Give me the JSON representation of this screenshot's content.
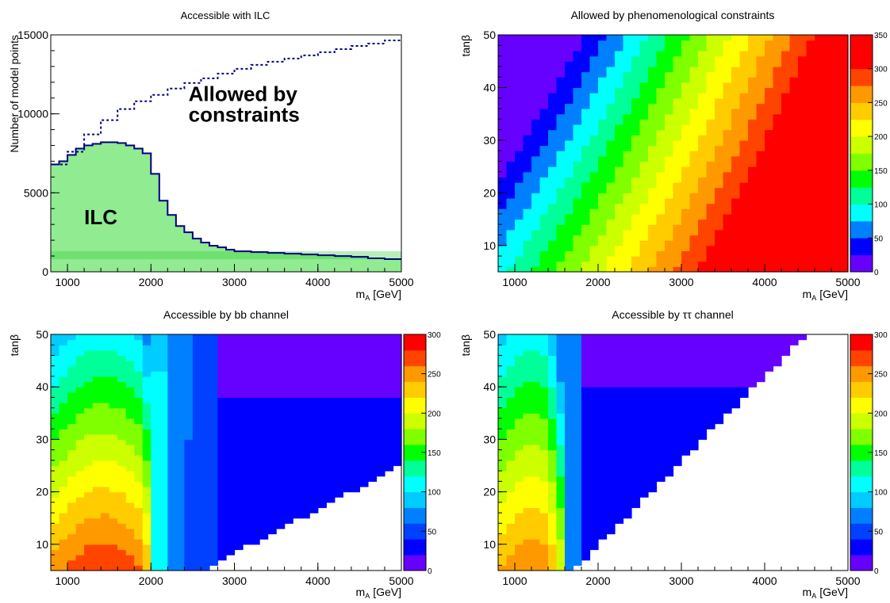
{
  "chart_data": [
    {
      "type": "histogram",
      "title": "Accessible with ILC",
      "xlabel_main": "m",
      "xlabel_sub": "A",
      "xlabel_unit": "[GeV]",
      "ylabel": "Number of model points",
      "xlim": [
        800,
        5000
      ],
      "ylim": [
        0,
        15000
      ],
      "x_ticks": [
        1000,
        2000,
        3000,
        4000,
        5000
      ],
      "y_ticks": [
        0,
        5000,
        10000,
        15000
      ],
      "annotations": [
        {
          "text": "Allowed by",
          "x": 2450,
          "y": 10800
        },
        {
          "text": "constraints",
          "x": 2450,
          "y": 9500
        },
        {
          "text": "ILC",
          "x": 1200,
          "y": 3000
        }
      ],
      "series": [
        {
          "style": "dashed",
          "color": "#000080",
          "x": [
            800,
            1000,
            1200,
            1400,
            1600,
            1800,
            2000,
            2200,
            2400,
            2600,
            2800,
            3000,
            3200,
            3400,
            3600,
            3800,
            4000,
            4200,
            4400,
            4600,
            4800,
            5000
          ],
          "values": [
            6800,
            7600,
            8700,
            9600,
            10300,
            10800,
            11200,
            11600,
            11950,
            12250,
            12550,
            12850,
            13100,
            13300,
            13500,
            13700,
            13900,
            14100,
            14300,
            14450,
            14650,
            14850
          ]
        },
        {
          "style": "filled-step",
          "color": "#000080",
          "fill": "#7ee87e",
          "x": [
            800,
            900,
            1000,
            1100,
            1200,
            1300,
            1400,
            1500,
            1600,
            1700,
            1800,
            1900,
            2000,
            2100,
            2200,
            2300,
            2400,
            2500,
            2600,
            2700,
            2800,
            2900,
            3000,
            3200,
            3400,
            3600,
            3800,
            4000,
            4200,
            4400,
            4600,
            4800,
            5000
          ],
          "values": [
            6800,
            7000,
            7400,
            7800,
            8000,
            8100,
            8200,
            8200,
            8150,
            8000,
            7800,
            7500,
            6200,
            4500,
            3600,
            2900,
            2500,
            2100,
            1850,
            1650,
            1550,
            1400,
            1300,
            1250,
            1200,
            1150,
            1100,
            1050,
            1000,
            950,
            850,
            800,
            750
          ]
        }
      ]
    },
    {
      "type": "heatmap",
      "title": "Allowed by phenomenological constraints",
      "xlabel_main": "m",
      "xlabel_sub": "A",
      "xlabel_unit": "[GeV]",
      "ylabel": "tanβ",
      "xlim": [
        800,
        5000
      ],
      "ylim": [
        5,
        50
      ],
      "x_ticks": [
        1000,
        2000,
        3000,
        4000,
        5000
      ],
      "y_ticks": [
        10,
        20,
        30,
        40,
        50
      ],
      "z_range": [
        0,
        350
      ],
      "z_ticks": [
        0,
        50,
        100,
        150,
        200,
        250,
        300,
        350
      ],
      "colorbar_colors": [
        "#6600ff",
        "#0000ff",
        "#0080ff",
        "#00ffff",
        "#00ff99",
        "#00ff00",
        "#80ff00",
        "#ccff00",
        "#ffff00",
        "#ffcc00",
        "#ff9900",
        "#ff4400",
        "#ff0000",
        "#ff0000"
      ]
    },
    {
      "type": "heatmap",
      "title": "Accessible by bb channel",
      "xlabel_main": "m",
      "xlabel_sub": "A",
      "xlabel_unit": "[GeV]",
      "ylabel": "tanβ",
      "xlim": [
        800,
        5000
      ],
      "ylim": [
        5,
        50
      ],
      "x_ticks": [
        1000,
        2000,
        3000,
        4000,
        5000
      ],
      "y_ticks": [
        10,
        20,
        30,
        40,
        50
      ],
      "z_range": [
        0,
        300
      ],
      "z_ticks": [
        0,
        50,
        100,
        150,
        200,
        250,
        300
      ],
      "colorbar_colors": [
        "#6600ff",
        "#0000ff",
        "#0040ff",
        "#0080ff",
        "#00ccff",
        "#00ffff",
        "#00ff99",
        "#00ff00",
        "#80ff00",
        "#ccff00",
        "#ffff00",
        "#ffcc00",
        "#ff9900",
        "#ff4400",
        "#ff0000"
      ]
    },
    {
      "type": "heatmap",
      "title": "Accessible by ττ channel",
      "xlabel_main": "m",
      "xlabel_sub": "A",
      "xlabel_unit": "[GeV]",
      "ylabel": "tanβ",
      "xlim": [
        800,
        5000
      ],
      "ylim": [
        5,
        50
      ],
      "x_ticks": [
        1000,
        2000,
        3000,
        4000,
        5000
      ],
      "y_ticks": [
        10,
        20,
        30,
        40,
        50
      ],
      "z_range": [
        0,
        300
      ],
      "z_ticks": [
        0,
        50,
        100,
        150,
        200,
        250,
        300
      ],
      "colorbar_colors": [
        "#6600ff",
        "#0000ff",
        "#0040ff",
        "#0080ff",
        "#00ccff",
        "#00ffff",
        "#00ff99",
        "#00ff00",
        "#80ff00",
        "#ccff00",
        "#ffff00",
        "#ffcc00",
        "#ff9900",
        "#ff4400",
        "#ff0000"
      ]
    }
  ]
}
